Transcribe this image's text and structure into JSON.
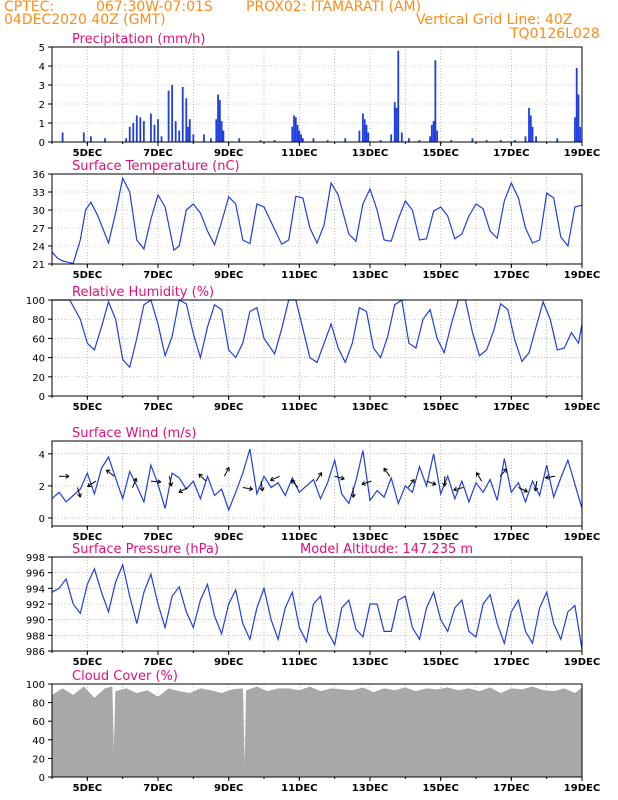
{
  "header": {
    "line1_left": "CPTEC:",
    "line1_coords": "067:30W-07:01S",
    "line1_station": "PROX02: ITAMARATI (AM)",
    "line2_left": "04DEC2020 40Z (GMT)",
    "line2_right": "Vertical Grid Line: 40Z",
    "line3_right": "TQ0126L028"
  },
  "colors": {
    "header": "#ff8c1a",
    "title": "#e0107a",
    "series": "#1f3fe0",
    "cloud": "#a8a8a8",
    "wind_arrow": "#000000",
    "grid": "#999999"
  },
  "chart_data": [
    {
      "id": "precip",
      "type": "bar",
      "title": "Precipitation (mm/h)",
      "ylim": [
        0,
        5
      ],
      "yticks": [
        0,
        1,
        2,
        3,
        4,
        5
      ],
      "xlim": [
        4,
        19
      ],
      "xticks": [
        "5DEC",
        "7DEC",
        "9DEC",
        "11DEC",
        "13DEC",
        "15DEC",
        "17DEC",
        "19DEC"
      ],
      "grid": true,
      "x": [
        4.3,
        4.9,
        5.1,
        5.5,
        6.1,
        6.2,
        6.3,
        6.4,
        6.5,
        6.6,
        6.8,
        6.9,
        7.0,
        7.1,
        7.3,
        7.4,
        7.5,
        7.6,
        7.7,
        7.8,
        7.85,
        7.9,
        8.0,
        8.3,
        8.5,
        8.65,
        8.7,
        8.75,
        8.8,
        8.85,
        9.3,
        9.9,
        10.3,
        10.8,
        10.85,
        10.9,
        10.95,
        11.0,
        11.05,
        11.1,
        11.4,
        11.8,
        12.3,
        12.7,
        12.8,
        12.85,
        12.9,
        12.95,
        13.3,
        13.6,
        13.7,
        13.75,
        13.8,
        13.9,
        14.1,
        14.4,
        14.7,
        14.75,
        14.8,
        14.85,
        14.9,
        15.3,
        15.9,
        16.3,
        16.7,
        17.1,
        17.4,
        17.5,
        17.55,
        17.6,
        17.7,
        18.3,
        18.8,
        18.85,
        18.9,
        18.95
      ],
      "values": [
        0.5,
        0.5,
        0.3,
        0.2,
        0.2,
        0.8,
        1.0,
        1.4,
        1.3,
        1.1,
        1.5,
        0.9,
        1.2,
        0.3,
        2.7,
        3.0,
        1.1,
        0.6,
        2.9,
        2.3,
        0.8,
        1.2,
        0.4,
        0.4,
        0.2,
        1.2,
        2.5,
        2.2,
        1.1,
        0.6,
        0.2,
        0.1,
        0.1,
        0.8,
        1.4,
        1.3,
        0.9,
        0.6,
        0.4,
        0.2,
        0.2,
        0.1,
        0.2,
        0.6,
        1.5,
        1.2,
        0.9,
        0.5,
        0.1,
        0.4,
        2.1,
        1.8,
        4.8,
        0.5,
        0.2,
        0.1,
        0.3,
        0.9,
        1.1,
        4.3,
        0.6,
        0.1,
        0.2,
        0.1,
        0.1,
        0.1,
        0.3,
        1.8,
        1.4,
        0.8,
        0.3,
        0.2,
        1.3,
        3.9,
        2.5,
        0.8
      ]
    },
    {
      "id": "temp",
      "type": "line",
      "title": "Surface Temperature (nC)",
      "ylim": [
        21,
        36
      ],
      "yticks": [
        21,
        24,
        27,
        30,
        33,
        36
      ],
      "xlim": [
        4,
        19
      ],
      "xticks": [
        "5DEC",
        "7DEC",
        "9DEC",
        "11DEC",
        "13DEC",
        "15DEC",
        "17DEC",
        "19DEC"
      ],
      "grid": true,
      "x": [
        4.0,
        4.15,
        4.3,
        4.45,
        4.6,
        4.8,
        4.95,
        5.1,
        5.3,
        5.6,
        5.8,
        6.0,
        6.2,
        6.4,
        6.6,
        6.8,
        7.0,
        7.2,
        7.45,
        7.6,
        7.8,
        8.0,
        8.2,
        8.4,
        8.6,
        8.8,
        9.0,
        9.2,
        9.4,
        9.6,
        9.8,
        10.0,
        10.2,
        10.5,
        10.7,
        10.9,
        11.1,
        11.3,
        11.5,
        11.7,
        11.9,
        12.1,
        12.4,
        12.6,
        12.8,
        13.0,
        13.2,
        13.4,
        13.6,
        13.8,
        14.0,
        14.2,
        14.4,
        14.6,
        14.8,
        15.0,
        15.2,
        15.4,
        15.6,
        15.8,
        16.0,
        16.2,
        16.4,
        16.6,
        16.8,
        17.0,
        17.2,
        17.4,
        17.6,
        17.8,
        18.0,
        18.2,
        18.4,
        18.6,
        18.8,
        19.0
      ],
      "values": [
        23.0,
        22.0,
        21.5,
        21.3,
        21.1,
        25.0,
        30.0,
        31.3,
        29.0,
        24.5,
        29.5,
        35.3,
        33.0,
        25.0,
        23.5,
        28.5,
        32.5,
        30.5,
        23.3,
        24.0,
        30.0,
        31.0,
        29.5,
        26.5,
        24.2,
        28.0,
        32.2,
        31.0,
        25.0,
        24.4,
        31.0,
        30.5,
        28.0,
        24.3,
        25.0,
        32.3,
        32.0,
        27.0,
        24.5,
        27.5,
        34.5,
        32.5,
        26.0,
        24.8,
        31.0,
        33.5,
        30.0,
        25.0,
        24.8,
        28.5,
        31.5,
        30.0,
        25.0,
        25.2,
        29.8,
        30.5,
        29.0,
        25.2,
        26.0,
        29.0,
        31.0,
        30.2,
        26.5,
        25.3,
        31.5,
        34.5,
        32.0,
        27.0,
        24.5,
        25.0,
        32.8,
        32.0,
        25.5,
        24.0,
        30.5,
        30.8
      ]
    },
    {
      "id": "rh",
      "type": "line",
      "title": "Relative Humidity (%)",
      "ylim": [
        0,
        100
      ],
      "yticks": [
        0,
        20,
        40,
        60,
        80,
        100
      ],
      "xlim": [
        4,
        19
      ],
      "xticks": [
        "5DEC",
        "7DEC",
        "9DEC",
        "11DEC",
        "13DEC",
        "15DEC",
        "17DEC",
        "19DEC"
      ],
      "grid": true,
      "x": [
        4.0,
        4.3,
        4.5,
        4.8,
        5.0,
        5.2,
        5.4,
        5.6,
        5.8,
        6.0,
        6.2,
        6.4,
        6.6,
        6.8,
        7.0,
        7.2,
        7.4,
        7.6,
        7.8,
        8.0,
        8.2,
        8.4,
        8.6,
        8.8,
        9.0,
        9.2,
        9.4,
        9.6,
        9.8,
        10.0,
        10.3,
        10.5,
        10.7,
        10.9,
        11.1,
        11.3,
        11.5,
        11.7,
        11.9,
        12.1,
        12.3,
        12.5,
        12.7,
        12.9,
        13.1,
        13.3,
        13.5,
        13.7,
        13.9,
        14.1,
        14.3,
        14.5,
        14.7,
        14.9,
        15.1,
        15.3,
        15.5,
        15.7,
        15.9,
        16.1,
        16.3,
        16.5,
        16.7,
        16.9,
        17.1,
        17.3,
        17.5,
        17.7,
        17.9,
        18.1,
        18.3,
        18.5,
        18.7,
        18.9,
        19.0
      ],
      "values": [
        100,
        100,
        100,
        80,
        55,
        48,
        72,
        98,
        80,
        38,
        30,
        60,
        95,
        100,
        75,
        42,
        62,
        100,
        96,
        65,
        40,
        72,
        95,
        90,
        48,
        40,
        55,
        88,
        92,
        60,
        44,
        70,
        100,
        100,
        70,
        40,
        35,
        55,
        75,
        50,
        35,
        55,
        92,
        88,
        50,
        40,
        62,
        95,
        100,
        55,
        50,
        80,
        90,
        60,
        45,
        75,
        100,
        100,
        66,
        42,
        48,
        68,
        96,
        90,
        58,
        36,
        45,
        72,
        98,
        80,
        48,
        50,
        66,
        55,
        75
      ]
    },
    {
      "id": "wind",
      "type": "line",
      "title": "Surface Wind (m/s)",
      "ylim": [
        -0.5,
        4.8
      ],
      "yticks": [
        0,
        2,
        4
      ],
      "xlim": [
        4,
        19
      ],
      "xticks": [
        "5DEC",
        "7DEC",
        "9DEC",
        "11DEC",
        "13DEC",
        "15DEC",
        "17DEC",
        "19DEC"
      ],
      "grid": true,
      "x": [
        4.0,
        4.2,
        4.4,
        4.6,
        4.8,
        5.0,
        5.2,
        5.4,
        5.6,
        5.8,
        6.0,
        6.2,
        6.4,
        6.6,
        6.8,
        7.0,
        7.2,
        7.4,
        7.6,
        7.8,
        8.0,
        8.2,
        8.4,
        8.6,
        8.8,
        9.0,
        9.2,
        9.4,
        9.6,
        9.8,
        10.0,
        10.2,
        10.4,
        10.6,
        10.8,
        11.0,
        11.2,
        11.4,
        11.6,
        11.8,
        12.0,
        12.2,
        12.4,
        12.6,
        12.8,
        13.0,
        13.2,
        13.4,
        13.6,
        13.8,
        14.0,
        14.2,
        14.4,
        14.6,
        14.8,
        15.0,
        15.2,
        15.4,
        15.6,
        15.8,
        16.0,
        16.2,
        16.4,
        16.6,
        16.8,
        17.0,
        17.2,
        17.4,
        17.6,
        17.8,
        18.0,
        18.2,
        18.4,
        18.6,
        18.8,
        19.0
      ],
      "values": [
        1.2,
        1.6,
        1.0,
        1.4,
        1.8,
        2.8,
        1.5,
        3.1,
        3.8,
        2.5,
        1.2,
        2.9,
        2.0,
        1.0,
        3.3,
        2.1,
        0.6,
        2.8,
        2.5,
        1.8,
        2.3,
        1.2,
        2.6,
        1.4,
        1.8,
        0.5,
        1.6,
        2.8,
        4.3,
        1.5,
        2.6,
        1.9,
        2.2,
        1.4,
        2.5,
        1.6,
        2.0,
        2.4,
        1.2,
        2.2,
        3.6,
        1.5,
        0.9,
        2.3,
        4.2,
        1.1,
        1.7,
        1.3,
        2.5,
        0.9,
        2.0,
        1.6,
        3.2,
        2.0,
        4.0,
        1.5,
        2.6,
        1.2,
        2.3,
        1.0,
        2.2,
        1.6,
        2.4,
        1.1,
        3.7,
        1.6,
        2.2,
        1.0,
        2.3,
        1.4,
        3.3,
        1.3,
        2.5,
        3.6,
        2.1,
        0.6
      ]
    },
    {
      "id": "pres",
      "type": "line",
      "title": "Surface Pressure (hPa)",
      "annotation": "Model Altitude: 147.235 m",
      "ylim": [
        986,
        998
      ],
      "yticks": [
        986,
        988,
        990,
        992,
        994,
        996,
        998
      ],
      "xlim": [
        4,
        19
      ],
      "xticks": [
        "5DEC",
        "7DEC",
        "9DEC",
        "11DEC",
        "13DEC",
        "15DEC",
        "17DEC",
        "19DEC"
      ],
      "grid": true,
      "x": [
        4.0,
        4.2,
        4.4,
        4.6,
        4.8,
        5.0,
        5.2,
        5.4,
        5.6,
        5.8,
        6.0,
        6.2,
        6.4,
        6.6,
        6.8,
        7.0,
        7.2,
        7.4,
        7.6,
        7.8,
        8.0,
        8.2,
        8.4,
        8.6,
        8.8,
        9.0,
        9.2,
        9.4,
        9.6,
        9.8,
        10.0,
        10.2,
        10.4,
        10.6,
        10.8,
        11.0,
        11.2,
        11.4,
        11.6,
        11.8,
        12.0,
        12.2,
        12.4,
        12.6,
        12.8,
        13.0,
        13.2,
        13.4,
        13.6,
        13.8,
        14.0,
        14.2,
        14.4,
        14.6,
        14.8,
        15.0,
        15.2,
        15.4,
        15.6,
        15.8,
        16.0,
        16.2,
        16.4,
        16.6,
        16.8,
        17.0,
        17.2,
        17.4,
        17.6,
        17.8,
        18.0,
        18.2,
        18.4,
        18.6,
        18.8,
        19.0
      ],
      "values": [
        993.5,
        994.0,
        995.2,
        992.0,
        990.8,
        994.5,
        996.5,
        993.5,
        991.0,
        994.8,
        997.0,
        993.0,
        989.5,
        993.5,
        995.8,
        992.0,
        989.0,
        993.0,
        994.2,
        991.0,
        989.0,
        992.5,
        994.5,
        990.5,
        988.2,
        992.0,
        993.8,
        989.5,
        987.5,
        991.5,
        994.0,
        990.0,
        987.5,
        991.5,
        993.5,
        989.0,
        987.2,
        992.0,
        993.0,
        988.5,
        986.8,
        991.5,
        992.5,
        988.8,
        987.8,
        992.0,
        992.0,
        988.5,
        988.5,
        992.5,
        993.0,
        989.0,
        987.5,
        991.5,
        993.5,
        990.0,
        988.5,
        991.5,
        992.5,
        988.5,
        987.8,
        992.0,
        993.2,
        989.5,
        987.0,
        991.0,
        992.5,
        988.5,
        987.0,
        991.5,
        993.5,
        989.5,
        987.5,
        991.0,
        991.8,
        986.2
      ]
    },
    {
      "id": "cloud",
      "type": "area",
      "title": "Cloud Cover (%)",
      "ylim": [
        0,
        100
      ],
      "yticks": [
        0,
        20,
        40,
        60,
        80,
        100
      ],
      "xlim": [
        4,
        19
      ],
      "xticks": [
        "5DEC",
        "7DEC",
        "9DEC",
        "11DEC",
        "13DEC",
        "15DEC",
        "17DEC",
        "19DEC"
      ],
      "grid": true,
      "x": [
        4.0,
        4.3,
        4.6,
        4.9,
        5.2,
        5.5,
        5.7,
        5.75,
        5.8,
        6.1,
        6.4,
        6.7,
        7.0,
        7.3,
        7.6,
        7.9,
        8.2,
        8.5,
        8.8,
        9.1,
        9.4,
        9.45,
        9.5,
        9.8,
        10.1,
        10.4,
        10.7,
        11.0,
        11.3,
        11.6,
        11.9,
        12.2,
        12.5,
        12.8,
        13.1,
        13.4,
        13.7,
        14.0,
        14.3,
        14.6,
        14.9,
        15.2,
        15.5,
        15.8,
        16.1,
        16.4,
        16.7,
        17.0,
        17.3,
        17.6,
        17.9,
        18.2,
        18.5,
        18.8,
        19.0
      ],
      "values": [
        88,
        95,
        88,
        97,
        85,
        95,
        97,
        20,
        92,
        95,
        90,
        93,
        86,
        95,
        92,
        90,
        95,
        93,
        90,
        94,
        95,
        0,
        93,
        97,
        92,
        95,
        95,
        93,
        97,
        92,
        95,
        94,
        93,
        96,
        91,
        95,
        93,
        96,
        92,
        95,
        94,
        96,
        93,
        95,
        92,
        96,
        90,
        95,
        94,
        97,
        93,
        92,
        95,
        90,
        96
      ]
    }
  ]
}
